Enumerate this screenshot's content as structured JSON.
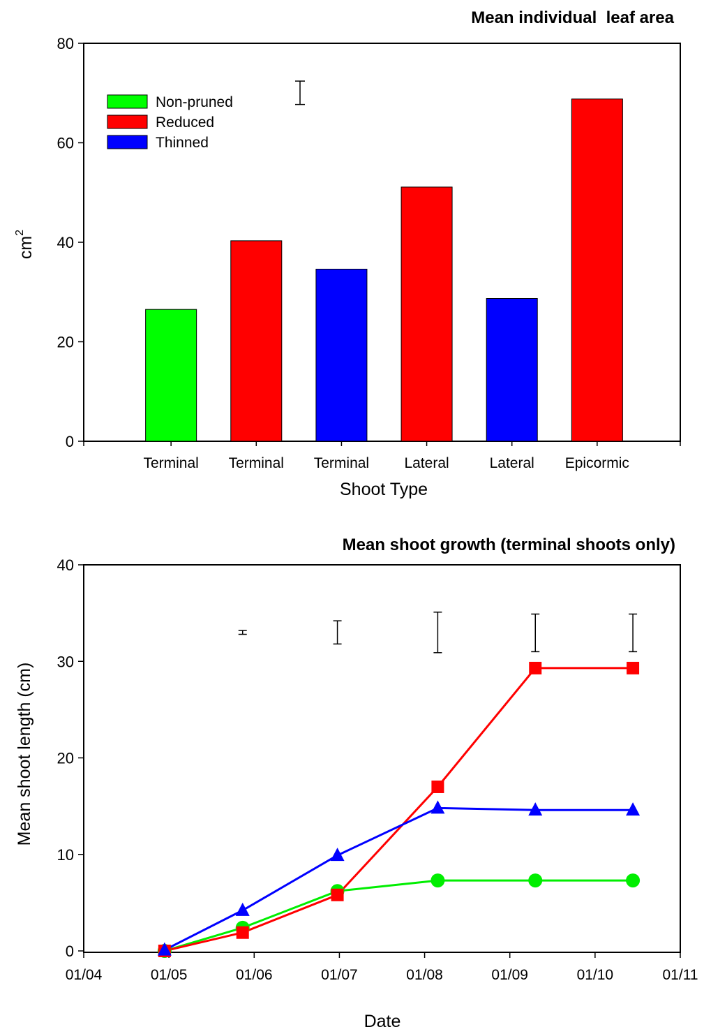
{
  "chart_data": [
    {
      "type": "bar",
      "title": "Mean individual  leaf area",
      "xlabel": "Shoot Type",
      "ylabel": "cm",
      "ylabel_superscript": "2",
      "ylim": [
        0,
        80
      ],
      "yticks": [
        "0",
        "20",
        "40",
        "60",
        "80"
      ],
      "categories": [
        "Terminal",
        "Terminal",
        "Terminal",
        "Lateral",
        "Lateral",
        "Epicormic"
      ],
      "values": [
        26.5,
        40.3,
        34.6,
        51.1,
        28.7,
        68.8
      ],
      "bar_series": [
        "Non-pruned",
        "Reduced",
        "Thinned",
        "Reduced",
        "Thinned",
        "Reduced"
      ],
      "legend": [
        {
          "name": "Non-pruned",
          "color": "#00ff00"
        },
        {
          "name": "Reduced",
          "color": "#ff0000"
        },
        {
          "name": "Thinned",
          "color": "#0000ff"
        }
      ],
      "legend_position": "top-left",
      "error_bar": {
        "low": 67.7,
        "high": 72.4
      },
      "grid": false
    },
    {
      "type": "line",
      "title": "Mean shoot growth (terminal shoots only)",
      "xlabel": "Date",
      "ylabel": "Mean shoot length (cm)",
      "ylim": [
        0,
        40
      ],
      "yticks": [
        "0",
        "10",
        "20",
        "30",
        "40"
      ],
      "xticks": [
        "01/04",
        "01/05",
        "01/06",
        "01/07",
        "01/08",
        "01/09",
        "01/10",
        "01/11"
      ],
      "x": [
        "2000-04-30",
        "2000-05-28",
        "2000-07-01",
        "2000-08-06",
        "2000-09-10",
        "2000-10-15"
      ],
      "series": [
        {
          "name": "Non-pruned",
          "color": "#00ee00",
          "marker": "circle",
          "values": [
            0,
            2.4,
            6.2,
            7.3,
            7.3,
            7.3
          ]
        },
        {
          "name": "Reduced",
          "color": "#ff0000",
          "marker": "square",
          "values": [
            0,
            1.9,
            5.8,
            17.0,
            29.3,
            29.3
          ]
        },
        {
          "name": "Thinned",
          "color": "#0000ff",
          "marker": "triangle",
          "values": [
            0.1,
            4.2,
            9.9,
            14.8,
            14.6,
            14.6
          ]
        }
      ],
      "error_bars": [
        {
          "x": "2000-05-28",
          "low": 32.8,
          "high": 33.2
        },
        {
          "x": "2000-07-01",
          "low": 31.8,
          "high": 34.2
        },
        {
          "x": "2000-08-06",
          "low": 30.9,
          "high": 35.1
        },
        {
          "x": "2000-09-10",
          "low": 31.0,
          "high": 34.9
        },
        {
          "x": "2000-10-15",
          "low": 31.0,
          "high": 34.9
        }
      ],
      "grid": false
    }
  ]
}
